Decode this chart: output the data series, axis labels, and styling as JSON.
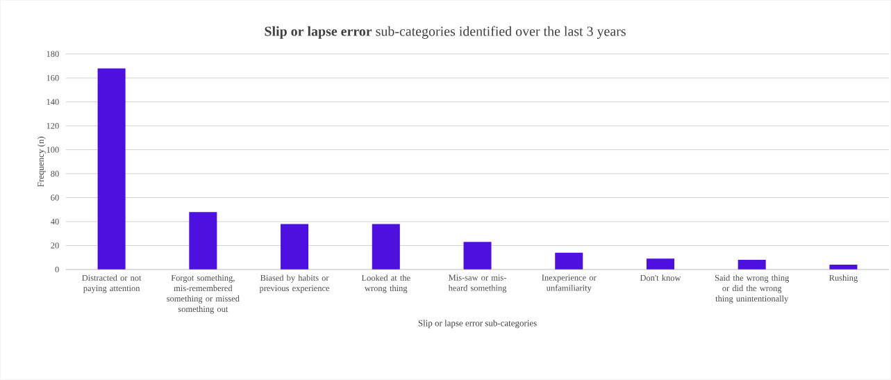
{
  "chart_data": {
    "type": "bar",
    "title": "**Slip or lapse error** sub-categories identified over the last 3 years",
    "xlabel": "Slip or lapse error sub-categories",
    "ylabel": "Frequency (n)",
    "categories": [
      "Distracted or not paying attention",
      "Forgot something, mis-remembered something or missed something out",
      "Biased by habits or previous experience",
      "Looked at the wrong thing",
      "Mis-saw or mis-heard something",
      "Inexperience or unfamiliarity",
      "Don't know",
      "Said the wrong thing or did the wrong thing unintentionally",
      "Rushing"
    ],
    "values": [
      168,
      48,
      38,
      38,
      23,
      14,
      9,
      8,
      4
    ],
    "color": "#4e10df",
    "ylim": [
      0,
      180
    ],
    "yticks": [
      0,
      20,
      40,
      60,
      80,
      100,
      120,
      140,
      160,
      180
    ],
    "grid": "y"
  }
}
